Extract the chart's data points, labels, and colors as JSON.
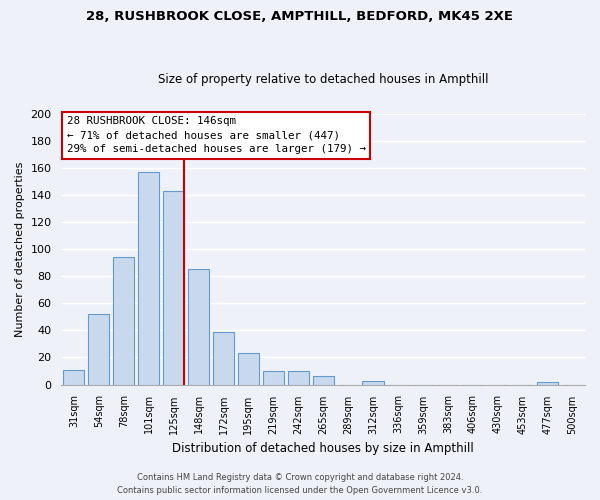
{
  "title1": "28, RUSHBROOK CLOSE, AMPTHILL, BEDFORD, MK45 2XE",
  "title2": "Size of property relative to detached houses in Ampthill",
  "xlabel": "Distribution of detached houses by size in Ampthill",
  "ylabel": "Number of detached properties",
  "bar_labels": [
    "31sqm",
    "54sqm",
    "78sqm",
    "101sqm",
    "125sqm",
    "148sqm",
    "172sqm",
    "195sqm",
    "219sqm",
    "242sqm",
    "265sqm",
    "289sqm",
    "312sqm",
    "336sqm",
    "359sqm",
    "383sqm",
    "406sqm",
    "430sqm",
    "453sqm",
    "477sqm",
    "500sqm"
  ],
  "bar_values": [
    11,
    52,
    94,
    157,
    143,
    85,
    39,
    23,
    10,
    10,
    6,
    0,
    3,
    0,
    0,
    0,
    0,
    0,
    0,
    2,
    0
  ],
  "bar_color": "#c8d9ee",
  "bar_edge_color": "#6699cc",
  "property_line_label": "28 RUSHBROOK CLOSE: 146sqm",
  "annotation_line1": "← 71% of detached houses are smaller (447)",
  "annotation_line2": "29% of semi-detached houses are larger (179) →",
  "annotation_box_color": "#ffffff",
  "annotation_box_edge": "#cc0000",
  "property_line_color": "#cc0000",
  "ylim": [
    0,
    200
  ],
  "yticks": [
    0,
    20,
    40,
    60,
    80,
    100,
    120,
    140,
    160,
    180,
    200
  ],
  "footer1": "Contains HM Land Registry data © Crown copyright and database right 2024.",
  "footer2": "Contains public sector information licensed under the Open Government Licence v3.0.",
  "background_color": "#eef2f8",
  "grid_color": "#ffffff"
}
